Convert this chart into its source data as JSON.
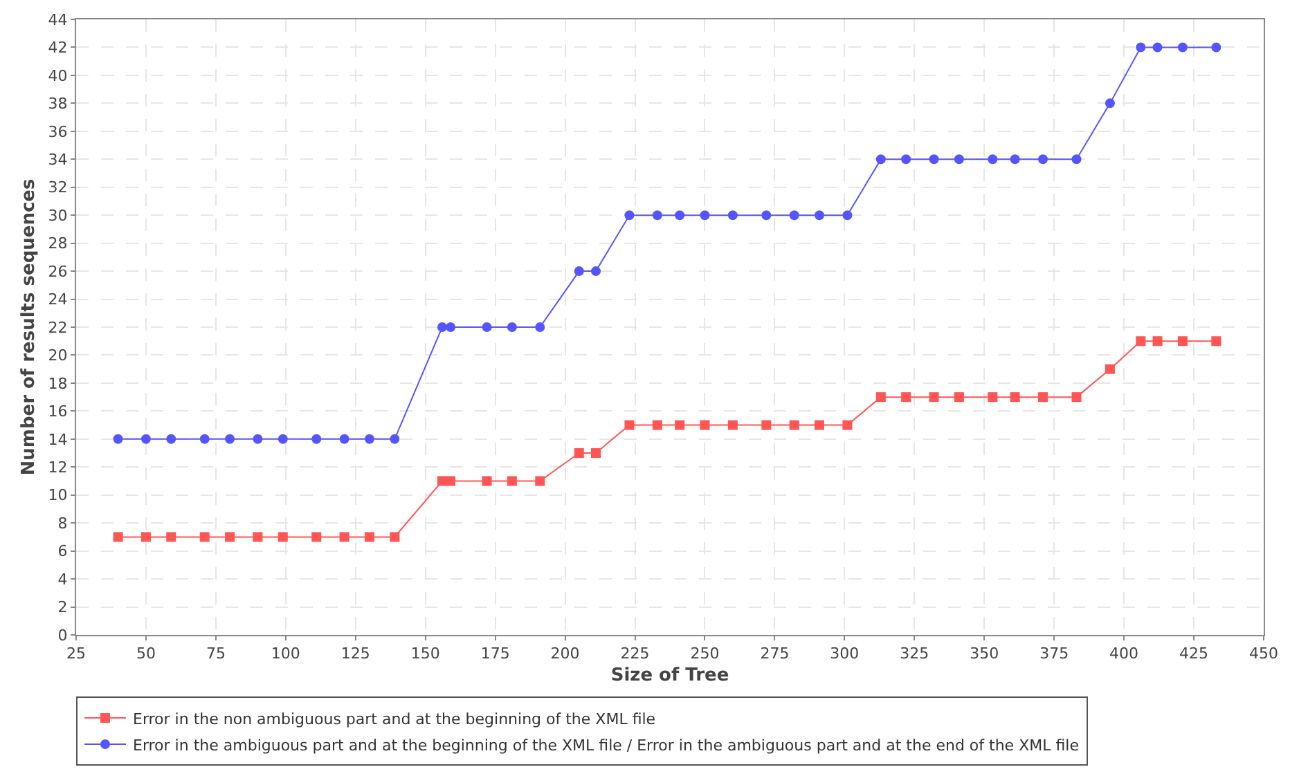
{
  "chart_data": {
    "type": "line",
    "xlabel": "Size of Tree",
    "ylabel": "Number of results sequences",
    "x": [
      40,
      50,
      59,
      71,
      80,
      90,
      99,
      111,
      121,
      130,
      139,
      156,
      159,
      172,
      181,
      191,
      205,
      211,
      223,
      233,
      241,
      250,
      260,
      272,
      282,
      291,
      301,
      313,
      322,
      332,
      341,
      353,
      361,
      371,
      383,
      395,
      406,
      412,
      421,
      433
    ],
    "series": [
      {
        "name": "Error in the non ambiguous part and at the beginning of the XML file",
        "color": "#ff5555",
        "marker": "square",
        "values": [
          7,
          7,
          7,
          7,
          7,
          7,
          7,
          7,
          7,
          7,
          7,
          11,
          11,
          11,
          11,
          11,
          13,
          13,
          15,
          15,
          15,
          15,
          15,
          15,
          15,
          15,
          15,
          17,
          17,
          17,
          17,
          17,
          17,
          17,
          17,
          19,
          21,
          21,
          21,
          21
        ]
      },
      {
        "name": "Error in the ambiguous part and at the beginning of the XML file / Error in the ambiguous part and at the end of the XML file",
        "color": "#5555ff",
        "marker": "circle",
        "values": [
          14,
          14,
          14,
          14,
          14,
          14,
          14,
          14,
          14,
          14,
          14,
          22,
          22,
          22,
          22,
          22,
          26,
          26,
          30,
          30,
          30,
          30,
          30,
          30,
          30,
          30,
          30,
          34,
          34,
          34,
          34,
          34,
          34,
          34,
          34,
          38,
          42,
          42,
          42,
          42
        ]
      }
    ],
    "xlim": [
      25,
      450
    ],
    "xticks": [
      25,
      50,
      75,
      100,
      125,
      150,
      175,
      200,
      225,
      250,
      275,
      300,
      325,
      350,
      375,
      400,
      425,
      450
    ],
    "ylim": [
      0,
      44
    ],
    "yticks": [
      0,
      2,
      4,
      6,
      8,
      10,
      12,
      14,
      16,
      18,
      20,
      22,
      24,
      26,
      28,
      30,
      32,
      34,
      36,
      38,
      40,
      42,
      44
    ],
    "grid": true,
    "legend": "bottom",
    "line_style": "solid"
  }
}
